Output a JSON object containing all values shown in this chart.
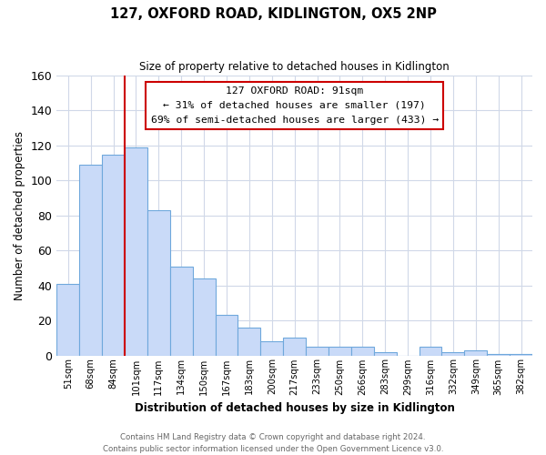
{
  "title": "127, OXFORD ROAD, KIDLINGTON, OX5 2NP",
  "subtitle": "Size of property relative to detached houses in Kidlington",
  "xlabel": "Distribution of detached houses by size in Kidlington",
  "ylabel": "Number of detached properties",
  "bar_labels": [
    "51sqm",
    "68sqm",
    "84sqm",
    "101sqm",
    "117sqm",
    "134sqm",
    "150sqm",
    "167sqm",
    "183sqm",
    "200sqm",
    "217sqm",
    "233sqm",
    "250sqm",
    "266sqm",
    "283sqm",
    "299sqm",
    "316sqm",
    "332sqm",
    "349sqm",
    "365sqm",
    "382sqm"
  ],
  "bar_values": [
    41,
    109,
    115,
    119,
    83,
    51,
    44,
    23,
    16,
    8,
    10,
    5,
    5,
    5,
    2,
    0,
    5,
    2,
    3,
    1,
    1
  ],
  "bar_color": "#c9daf8",
  "bar_edge_color": "#6fa8dc",
  "ylim": [
    0,
    160
  ],
  "yticks": [
    0,
    20,
    40,
    60,
    80,
    100,
    120,
    140,
    160
  ],
  "property_line_color": "#cc0000",
  "property_line_bar_index": 2,
  "annotation_title": "127 OXFORD ROAD: 91sqm",
  "annotation_line1": "← 31% of detached houses are smaller (197)",
  "annotation_line2": "69% of semi-detached houses are larger (433) →",
  "footer_line1": "Contains HM Land Registry data © Crown copyright and database right 2024.",
  "footer_line2": "Contains public sector information licensed under the Open Government Licence v3.0.",
  "background_color": "#ffffff",
  "grid_color": "#d0d8e8"
}
